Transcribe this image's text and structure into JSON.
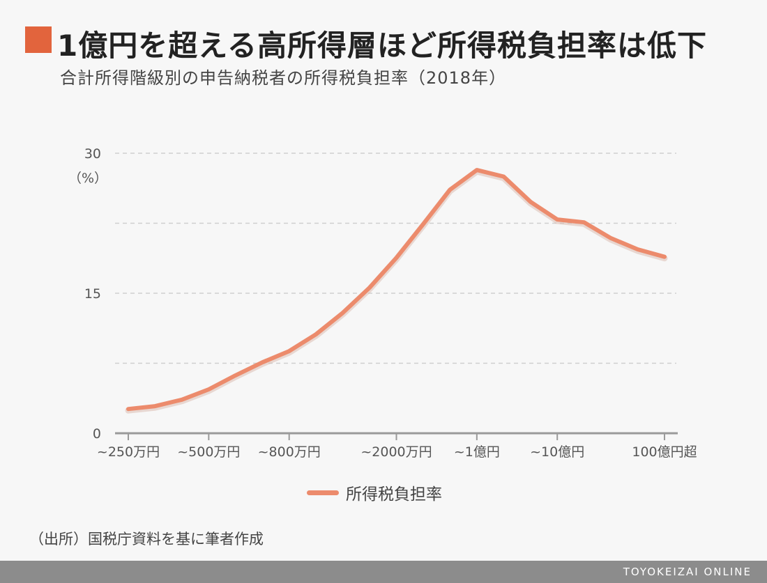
{
  "title": "1億円を超える高所得層ほど所得税負担率は低下",
  "subtitle": "合計所得階級別の申告納税者の所得税負担率（2018年）",
  "accent_color": "#e2643d",
  "line_color": "#ec8b6c",
  "source": "（出所）国税庁資料を基に筆者作成",
  "footer": "TOYOKEIZAI ONLINE",
  "chart_data": {
    "type": "line",
    "unit_label": "（%）",
    "ylim": [
      0,
      30
    ],
    "y_ticks": [
      0,
      15,
      30
    ],
    "grid": true,
    "legend_position": "bottom-center",
    "tick_labels": [
      {
        "label": "~250万円",
        "index": 0
      },
      {
        "label": "~500万円",
        "index": 3
      },
      {
        "label": "~800万円",
        "index": 6
      },
      {
        "label": "~2000万円",
        "index": 10
      },
      {
        "label": "~1億円",
        "index": 13
      },
      {
        "label": "~10億円",
        "index": 16
      },
      {
        "label": "100億円超",
        "index": 20
      }
    ],
    "series": [
      {
        "name": "所得税負担率",
        "values": [
          2.6,
          2.9,
          3.6,
          4.7,
          6.2,
          7.6,
          8.8,
          10.6,
          12.9,
          15.6,
          18.8,
          22.4,
          26.1,
          28.2,
          27.5,
          24.8,
          22.9,
          22.6,
          20.9,
          19.7,
          18.9
        ]
      }
    ]
  }
}
